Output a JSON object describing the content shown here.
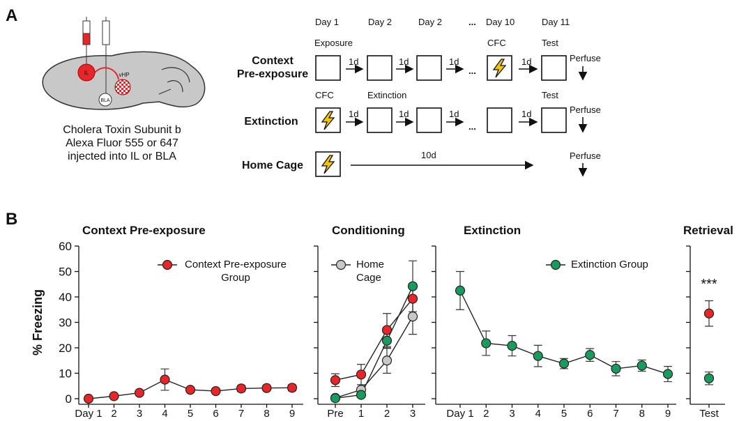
{
  "panel_a": {
    "label": "A",
    "brain_labels": {
      "il": "IL",
      "vhp": "vHP",
      "bla": "BLA"
    },
    "caption": [
      "Cholera Toxin Subunit b",
      "Alexa Fluor 555 or 647",
      "injected into IL or BLA"
    ],
    "days": [
      "Day 1",
      "Day 2",
      "Day 2",
      "...",
      "Day 10",
      "Day 11"
    ],
    "rows": [
      {
        "label": [
          "Context",
          "Pre-exposure"
        ],
        "steps": [
          "Exposure",
          "CFC",
          "Test"
        ],
        "intervals": [
          "1d",
          "1d",
          "1d",
          "1d"
        ],
        "ellipsis": "...",
        "end": "Perfuse"
      },
      {
        "label": [
          "Extinction"
        ],
        "steps": [
          "CFC",
          "Extinction",
          "Test"
        ],
        "intervals": [
          "1d",
          "1d",
          "1d",
          "1d"
        ],
        "ellipsis": "...",
        "end": "Perfuse"
      },
      {
        "label": [
          "Home Cage"
        ],
        "intervals": [
          "10d"
        ],
        "end": "Perfuse"
      }
    ]
  },
  "panel_b_label": "B",
  "chart_data": [
    {
      "type": "line",
      "title": "Context Pre-exposure",
      "ylabel": "% Freezing",
      "categories": [
        "Day 1",
        "2",
        "3",
        "4",
        "5",
        "6",
        "7",
        "8",
        "9"
      ],
      "series": [
        {
          "name": "Context Pre-exposure Group",
          "color": "#e8262a",
          "values": [
            0,
            1,
            2.3,
            7.5,
            3.5,
            3,
            4,
            4.2,
            4.3
          ],
          "errors": [
            0.5,
            0.6,
            0.8,
            4.2,
            1,
            0.8,
            1.2,
            1,
            1.2
          ]
        }
      ],
      "ylim": [
        0,
        60
      ],
      "yticks": [
        0,
        10,
        20,
        30,
        40,
        50,
        60
      ]
    },
    {
      "type": "line",
      "title": "Conditioning",
      "categories": [
        "Pre",
        "1",
        "2",
        "3"
      ],
      "series": [
        {
          "color": "#e8262a",
          "values": [
            7.3,
            9.5,
            27,
            39.3
          ],
          "errors": [
            2.5,
            4,
            6.5,
            6
          ]
        },
        {
          "name": "Home Cage",
          "color": "#c8c8c8",
          "values": [
            0.3,
            3.5,
            15,
            32.3
          ],
          "errors": [
            0.5,
            2,
            5,
            7
          ]
        },
        {
          "color": "#1a9b5e",
          "values": [
            0.2,
            1.5,
            22.8,
            44.2
          ],
          "errors": [
            0.3,
            1,
            3,
            10
          ]
        }
      ],
      "ylim": [
        0,
        60
      ],
      "yticks": [
        0,
        10,
        20,
        30,
        40,
        50,
        60
      ]
    },
    {
      "type": "line",
      "title": "Extinction",
      "categories": [
        "Day 1",
        "2",
        "3",
        "4",
        "5",
        "6",
        "7",
        "8",
        "9"
      ],
      "series": [
        {
          "name": "Extinction Group",
          "color": "#1a9b5e",
          "values": [
            42.5,
            21.8,
            20.8,
            16.8,
            13.8,
            17.2,
            11.8,
            13,
            9.7
          ],
          "errors": [
            7.5,
            4.8,
            4,
            4.2,
            2,
            2.5,
            2.8,
            2.2,
            3
          ]
        }
      ],
      "ylim": [
        0,
        60
      ],
      "yticks": [
        0,
        10,
        20,
        30,
        40,
        50,
        60
      ]
    },
    {
      "type": "line",
      "title": "Retrieval",
      "annotation": "***",
      "categories": [
        "Test"
      ],
      "series": [
        {
          "color": "#e8262a",
          "values": [
            33.5
          ],
          "errors": [
            5
          ]
        },
        {
          "color": "#1a9b5e",
          "values": [
            8
          ],
          "errors": [
            2.5
          ]
        }
      ],
      "ylim": [
        0,
        60
      ],
      "yticks": [
        0,
        10,
        20,
        30,
        40,
        50,
        60
      ]
    }
  ]
}
